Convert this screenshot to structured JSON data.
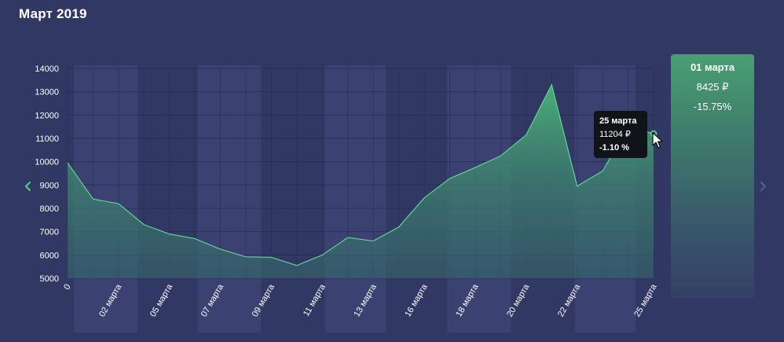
{
  "page": {
    "title": "Март 2019"
  },
  "side_panel": {
    "date": "01 марта",
    "price": "8425 ₽",
    "change": "-15.75%"
  },
  "tooltip": {
    "date": "25 марта",
    "price": "11204 ₽",
    "change": "-1.10 %"
  },
  "icons": {
    "prev": "chevron-left-icon",
    "next": "chevron-right-icon",
    "cursor": "mouse-pointer-icon"
  },
  "colors": {
    "background": "#323864",
    "line": "#5fd494",
    "accent": "#49a072",
    "band": "#3d4373",
    "tooltip_bg": "#101418",
    "nav_arrow_active": "#4fc985",
    "nav_arrow_inactive": "#59608a"
  },
  "chart_data": {
    "type": "area",
    "title": "",
    "xlabel": "",
    "ylabel": "",
    "ylim": [
      5000,
      14000
    ],
    "yticks": [
      5000,
      6000,
      7000,
      8000,
      9000,
      10000,
      11000,
      12000,
      13000,
      14000
    ],
    "grid": true,
    "legend": "none",
    "x": [
      0,
      1,
      2,
      3,
      4,
      5,
      6,
      7,
      8,
      9,
      10,
      11,
      12,
      13,
      14,
      15,
      16,
      17,
      18,
      19,
      20,
      21,
      22,
      23
    ],
    "values": [
      9950,
      8400,
      8200,
      7300,
      6900,
      6700,
      6250,
      5920,
      5900,
      5550,
      6000,
      6750,
      6600,
      7200,
      8450,
      9280,
      9750,
      10250,
      11150,
      13300,
      8950,
      9600,
      11500,
      11204
    ],
    "xtick_labels": [
      {
        "x": 0,
        "label": "0"
      },
      {
        "x": 2,
        "label": "02 марта"
      },
      {
        "x": 4,
        "label": "05 марта"
      },
      {
        "x": 6,
        "label": "07 марта"
      },
      {
        "x": 8,
        "label": "09 марта"
      },
      {
        "x": 10,
        "label": "11 марта"
      },
      {
        "x": 12,
        "label": "13 марта"
      },
      {
        "x": 14,
        "label": "16 марта"
      },
      {
        "x": 16,
        "label": "18 марта"
      },
      {
        "x": 18,
        "label": "20 марта"
      },
      {
        "x": 20,
        "label": "22 марта"
      },
      {
        "x": 23,
        "label": "25 марта"
      }
    ],
    "bands": [
      [
        0.25,
        2.75
      ],
      [
        5.1,
        7.6
      ],
      [
        10.1,
        12.5
      ],
      [
        14.9,
        17.4
      ],
      [
        19.9,
        22.3
      ]
    ],
    "highlight_point": 23
  }
}
